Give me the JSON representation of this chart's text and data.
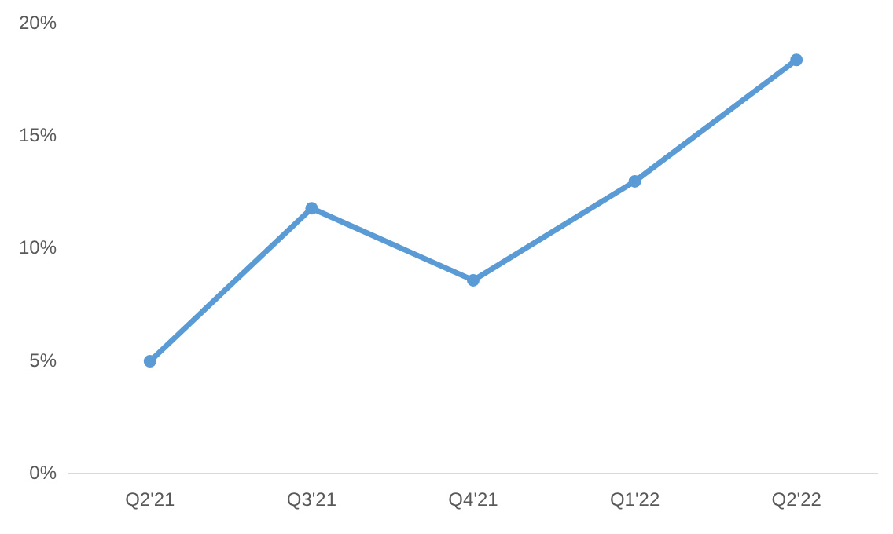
{
  "chart_data": {
    "type": "line",
    "categories": [
      "Q2'21",
      "Q3'21",
      "Q4'21",
      "Q1'22",
      "Q2'22"
    ],
    "series": [
      {
        "color": "#5b9bd5",
        "values": [
          5.0,
          11.8,
          8.6,
          13.0,
          18.4
        ]
      }
    ],
    "ylim": [
      0,
      20
    ],
    "yticks": [
      {
        "value": 0,
        "label": "0%"
      },
      {
        "value": 5,
        "label": "5%"
      },
      {
        "value": 10,
        "label": "10%"
      },
      {
        "value": 15,
        "label": "15%"
      },
      {
        "value": 20,
        "label": "20%"
      }
    ],
    "grid": false,
    "legend": false,
    "marker": "circle",
    "line_style": "solid"
  }
}
